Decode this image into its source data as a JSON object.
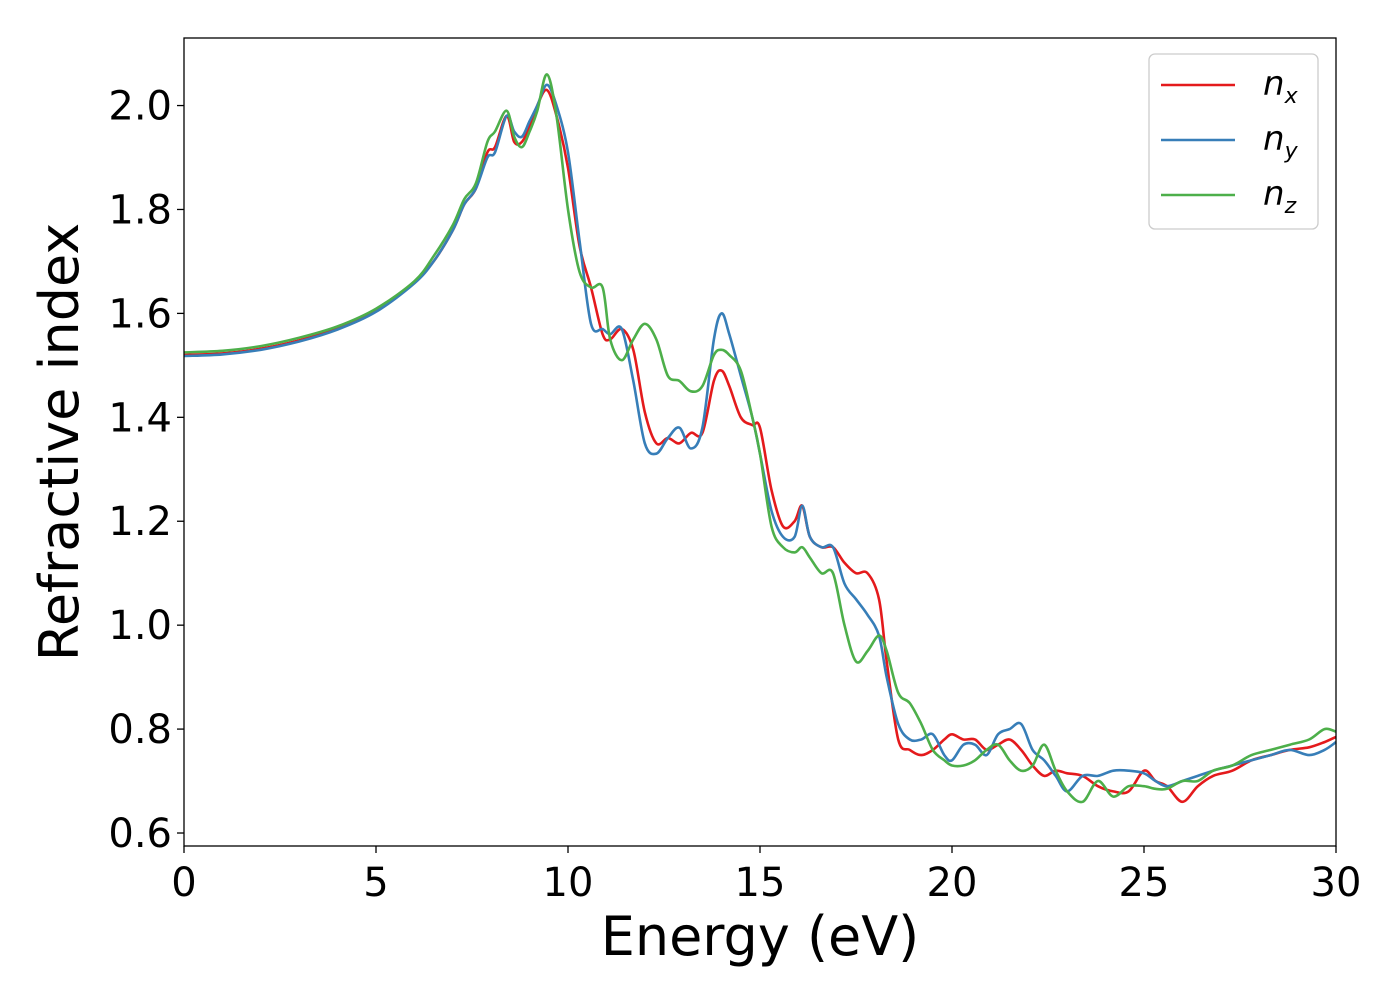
{
  "chart_data": {
    "type": "line",
    "xlabel": "Energy (eV)",
    "ylabel": "Refractive index",
    "xlim": [
      0,
      30
    ],
    "ylim": [
      0.575,
      2.13
    ],
    "xticks": [
      "0",
      "5",
      "10",
      "15",
      "20",
      "25",
      "30"
    ],
    "xtick_values": [
      0,
      5,
      10,
      15,
      20,
      25,
      30
    ],
    "yticks": [
      "0.6",
      "0.8",
      "1.0",
      "1.2",
      "1.4",
      "1.6",
      "1.8",
      "2.0"
    ],
    "ytick_values": [
      0.6,
      0.8,
      1.0,
      1.2,
      1.4,
      1.6,
      1.8,
      2.0
    ],
    "grid": false,
    "legend_position": "top-right",
    "series": [
      {
        "name": "n",
        "subscript": "x",
        "color": "#e41a1c",
        "x": [
          0,
          1,
          2,
          3,
          4,
          5,
          6,
          6.5,
          7,
          7.3,
          7.6,
          7.9,
          8.1,
          8.4,
          8.6,
          8.8,
          9.0,
          9.2,
          9.45,
          9.7,
          10.0,
          10.3,
          10.6,
          10.9,
          11.1,
          11.4,
          11.7,
          12.0,
          12.3,
          12.6,
          12.9,
          13.2,
          13.5,
          13.8,
          14.0,
          14.2,
          14.5,
          14.8,
          15.0,
          15.3,
          15.6,
          15.9,
          16.1,
          16.3,
          16.6,
          16.9,
          17.2,
          17.5,
          17.8,
          18.1,
          18.3,
          18.6,
          18.9,
          19.2,
          19.5,
          19.8,
          20.0,
          20.3,
          20.6,
          20.9,
          21.2,
          21.5,
          21.8,
          22.1,
          22.4,
          22.7,
          23.0,
          23.4,
          23.8,
          24.2,
          24.6,
          25.0,
          25.3,
          25.6,
          26.0,
          26.4,
          26.8,
          27.3,
          27.8,
          28.3,
          28.8,
          29.3,
          29.7,
          30.0
        ],
        "y": [
          1.52,
          1.523,
          1.532,
          1.548,
          1.571,
          1.605,
          1.66,
          1.7,
          1.76,
          1.81,
          1.84,
          1.91,
          1.92,
          1.98,
          1.93,
          1.93,
          1.96,
          2.0,
          2.03,
          1.98,
          1.88,
          1.73,
          1.65,
          1.56,
          1.55,
          1.57,
          1.53,
          1.41,
          1.35,
          1.36,
          1.35,
          1.37,
          1.37,
          1.47,
          1.49,
          1.46,
          1.4,
          1.385,
          1.38,
          1.26,
          1.19,
          1.2,
          1.23,
          1.17,
          1.15,
          1.15,
          1.12,
          1.1,
          1.1,
          1.05,
          0.93,
          0.78,
          0.76,
          0.75,
          0.76,
          0.78,
          0.79,
          0.78,
          0.78,
          0.76,
          0.77,
          0.78,
          0.76,
          0.73,
          0.71,
          0.72,
          0.715,
          0.71,
          0.69,
          0.68,
          0.68,
          0.72,
          0.7,
          0.69,
          0.66,
          0.69,
          0.71,
          0.72,
          0.74,
          0.75,
          0.76,
          0.765,
          0.775,
          0.785
        ]
      },
      {
        "name": "n",
        "subscript": "y",
        "color": "#377eb8",
        "x": [
          0,
          1,
          2,
          3,
          4,
          5,
          6,
          6.5,
          7,
          7.3,
          7.6,
          7.9,
          8.1,
          8.4,
          8.6,
          8.8,
          9.0,
          9.2,
          9.45,
          9.7,
          10.0,
          10.3,
          10.6,
          10.9,
          11.1,
          11.4,
          11.7,
          12.0,
          12.3,
          12.6,
          12.9,
          13.2,
          13.5,
          13.8,
          14.0,
          14.2,
          14.5,
          14.8,
          15.0,
          15.3,
          15.6,
          15.9,
          16.1,
          16.3,
          16.6,
          16.9,
          17.2,
          17.5,
          17.8,
          18.1,
          18.3,
          18.6,
          18.9,
          19.2,
          19.5,
          19.8,
          20.0,
          20.3,
          20.6,
          20.9,
          21.2,
          21.5,
          21.8,
          22.1,
          22.4,
          22.7,
          23.0,
          23.4,
          23.8,
          24.2,
          24.6,
          25.0,
          25.3,
          25.6,
          26.0,
          26.4,
          26.8,
          27.3,
          27.8,
          28.3,
          28.8,
          29.3,
          29.7,
          30.0
        ],
        "y": [
          1.518,
          1.521,
          1.53,
          1.546,
          1.569,
          1.603,
          1.658,
          1.7,
          1.76,
          1.81,
          1.84,
          1.9,
          1.91,
          1.98,
          1.95,
          1.94,
          1.97,
          2.0,
          2.04,
          2.0,
          1.91,
          1.74,
          1.58,
          1.57,
          1.56,
          1.57,
          1.47,
          1.35,
          1.33,
          1.36,
          1.38,
          1.34,
          1.38,
          1.55,
          1.6,
          1.56,
          1.48,
          1.4,
          1.33,
          1.22,
          1.17,
          1.17,
          1.23,
          1.17,
          1.15,
          1.15,
          1.08,
          1.05,
          1.02,
          0.98,
          0.9,
          0.81,
          0.78,
          0.78,
          0.79,
          0.75,
          0.74,
          0.77,
          0.77,
          0.75,
          0.79,
          0.8,
          0.81,
          0.76,
          0.74,
          0.71,
          0.68,
          0.71,
          0.71,
          0.72,
          0.72,
          0.715,
          0.7,
          0.69,
          0.7,
          0.71,
          0.72,
          0.73,
          0.74,
          0.75,
          0.76,
          0.75,
          0.76,
          0.775
        ]
      },
      {
        "name": "n",
        "subscript": "z",
        "color": "#4daf4a",
        "x": [
          0,
          1,
          2,
          3,
          4,
          5,
          6,
          6.5,
          7,
          7.3,
          7.6,
          7.9,
          8.1,
          8.4,
          8.6,
          8.8,
          9.0,
          9.2,
          9.45,
          9.7,
          10.0,
          10.3,
          10.6,
          10.9,
          11.1,
          11.4,
          11.7,
          12.0,
          12.3,
          12.6,
          12.9,
          13.2,
          13.5,
          13.8,
          14.0,
          14.2,
          14.5,
          14.8,
          15.0,
          15.3,
          15.6,
          15.9,
          16.1,
          16.3,
          16.6,
          16.9,
          17.2,
          17.5,
          17.8,
          18.1,
          18.3,
          18.6,
          18.9,
          19.2,
          19.5,
          19.8,
          20.0,
          20.3,
          20.6,
          20.9,
          21.2,
          21.5,
          21.8,
          22.1,
          22.4,
          22.7,
          23.0,
          23.4,
          23.8,
          24.2,
          24.6,
          25.0,
          25.3,
          25.6,
          26.0,
          26.4,
          26.8,
          27.3,
          27.8,
          28.3,
          28.8,
          29.3,
          29.7,
          30.0
        ],
        "y": [
          1.525,
          1.528,
          1.537,
          1.553,
          1.575,
          1.609,
          1.662,
          1.71,
          1.77,
          1.82,
          1.85,
          1.93,
          1.95,
          1.99,
          1.94,
          1.92,
          1.95,
          1.99,
          2.06,
          1.98,
          1.8,
          1.68,
          1.65,
          1.65,
          1.55,
          1.51,
          1.55,
          1.58,
          1.55,
          1.48,
          1.47,
          1.45,
          1.46,
          1.52,
          1.53,
          1.52,
          1.49,
          1.4,
          1.33,
          1.19,
          1.15,
          1.14,
          1.15,
          1.13,
          1.1,
          1.1,
          1.0,
          0.93,
          0.95,
          0.98,
          0.95,
          0.87,
          0.85,
          0.81,
          0.76,
          0.74,
          0.73,
          0.73,
          0.74,
          0.76,
          0.77,
          0.74,
          0.72,
          0.73,
          0.77,
          0.72,
          0.68,
          0.66,
          0.7,
          0.67,
          0.69,
          0.69,
          0.685,
          0.685,
          0.7,
          0.7,
          0.72,
          0.73,
          0.75,
          0.76,
          0.77,
          0.78,
          0.8,
          0.795
        ]
      }
    ]
  }
}
